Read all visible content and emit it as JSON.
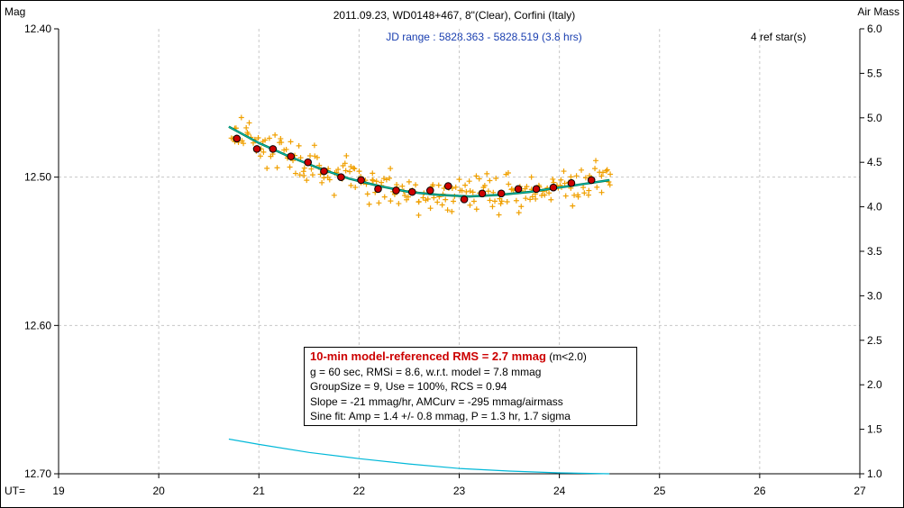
{
  "title": "2011.09.23, WD0148+467, 8\"(Clear), Corfini (Italy)",
  "subtitle": "JD range : 5828.363 - 5828.519 (3.8 hrs)",
  "ref_stars": "4 ref star(s)",
  "left_axis_label": "Mag",
  "right_axis_label": "Air Mass",
  "x_axis_prefix": "UT=",
  "stats": {
    "headline": "10-min model-referenced RMS = 2.7 mmag",
    "headline_suffix": " (m<2.0)",
    "line1": "g = 60 sec, RMSi = 8.6, w.r.t. model = 7.8 mmag",
    "line2": "GroupSize = 9, Use = 100%, RCS = 0.94",
    "line3": "Slope = -21 mmag/hr, AMCurv = -295 mmag/airmass",
    "line4": "Sine fit: Amp = 1.4 +/- 0.8 mmag, P = 1.3 hr, 1.7 sigma"
  },
  "colors": {
    "points": "#f0a000",
    "binned_fill": "#cc0000",
    "model": "#007030",
    "trend": "#00b0b0",
    "airmass": "#00b8d8",
    "grid": "#c8c8c8"
  },
  "chart_data": {
    "type": "scatter",
    "x_axis": {
      "label": "UT",
      "range": [
        19,
        27
      ],
      "ticks": [
        "19",
        "20",
        "21",
        "22",
        "23",
        "24",
        "25",
        "26",
        "27"
      ]
    },
    "y_axis_left": {
      "label": "Mag",
      "range": [
        12.7,
        12.4
      ],
      "ticks": [
        "12.40",
        "12.50",
        "12.60",
        "12.70"
      ],
      "inverted": true
    },
    "y_axis_right": {
      "label": "Air Mass",
      "range": [
        1.0,
        6.0
      ],
      "ticks": [
        "1.0",
        "1.5",
        "2.0",
        "2.5",
        "3.0",
        "3.5",
        "4.0",
        "4.5",
        "5.0",
        "5.5",
        "6.0"
      ]
    },
    "grid": true,
    "binned_points": {
      "x": [
        20.78,
        20.98,
        21.14,
        21.32,
        21.49,
        21.65,
        21.82,
        22.02,
        22.19,
        22.37,
        22.53,
        22.71,
        22.89,
        23.05,
        23.23,
        23.42,
        23.59,
        23.77,
        23.94,
        24.12,
        24.32
      ],
      "y": [
        12.474,
        12.481,
        12.481,
        12.486,
        12.49,
        12.496,
        12.5,
        12.502,
        12.508,
        12.509,
        12.51,
        12.509,
        12.506,
        12.515,
        12.511,
        12.511,
        12.508,
        12.508,
        12.507,
        12.504,
        12.502
      ]
    },
    "model_curve": {
      "x": [
        20.7,
        21.0,
        21.3,
        21.6,
        21.9,
        22.2,
        22.5,
        22.8,
        23.1,
        23.4,
        23.7,
        24.0,
        24.3,
        24.5
      ],
      "y": [
        12.466,
        12.477,
        12.486,
        12.494,
        12.501,
        12.506,
        12.51,
        12.512,
        12.513,
        12.512,
        12.51,
        12.507,
        12.504,
        12.502
      ]
    },
    "airmass_curve": {
      "x": [
        20.7,
        21.0,
        21.5,
        22.0,
        22.5,
        23.0,
        23.5,
        24.0,
        24.5
      ],
      "y": [
        1.39,
        1.33,
        1.24,
        1.17,
        1.11,
        1.06,
        1.03,
        1.01,
        1.0
      ]
    }
  }
}
